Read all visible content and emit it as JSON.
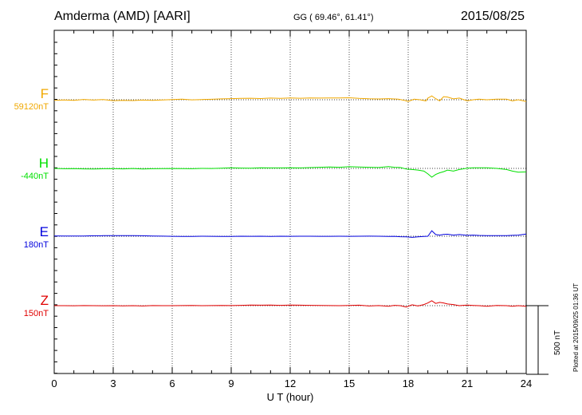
{
  "header": {
    "station": "Amderma (AMD)  [AARI]",
    "coords": "GG ( 69.46°,  61.41°)",
    "date": "2015/08/25"
  },
  "footer": {
    "plotted": "Plotted at 2015/09/25 01:36 UT",
    "scale_label": "500 nT"
  },
  "chart_data": {
    "type": "line",
    "title": "",
    "xlabel": "U T (hour)",
    "ylabel": "",
    "xlim": [
      0,
      24
    ],
    "xticks": [
      0,
      3,
      6,
      9,
      12,
      15,
      18,
      21,
      24
    ],
    "xtick_labels": [
      "0",
      "3",
      "6",
      "9",
      "12",
      "15",
      "18",
      "21",
      "24"
    ],
    "grid": "dotted",
    "scale_bar_nT": 500,
    "series": [
      {
        "name": "F",
        "baseline": "59120nT",
        "color": "#f0a800",
        "x": [
          0,
          0.5,
          1,
          1.5,
          2,
          2.5,
          3,
          3.5,
          4,
          4.5,
          5,
          5.5,
          6,
          6.5,
          7,
          7.5,
          8,
          8.5,
          9,
          9.5,
          10,
          10.5,
          11,
          11.5,
          12,
          12.5,
          13,
          13.5,
          14,
          14.5,
          15,
          15.5,
          16,
          16.5,
          17,
          17.5,
          17.8,
          18,
          18.3,
          18.6,
          18.9,
          19,
          19.2,
          19.4,
          19.6,
          19.8,
          20,
          20.3,
          20.6,
          21,
          21.3,
          21.6,
          22,
          22.5,
          23,
          23.3,
          23.6,
          24
        ],
        "y": [
          -5,
          -2,
          -6,
          3,
          -3,
          2,
          -8,
          -5,
          -7,
          -3,
          -5,
          -2,
          2,
          5,
          -1,
          2,
          4,
          8,
          10,
          12,
          14,
          11,
          15,
          13,
          17,
          14,
          16,
          15,
          17,
          16,
          18,
          12,
          9,
          7,
          10,
          5,
          -5,
          -15,
          5,
          0,
          -10,
          15,
          35,
          10,
          -10,
          28,
          25,
          8,
          15,
          -10,
          0,
          5,
          0,
          5,
          5,
          -10,
          0,
          -15
        ]
      },
      {
        "name": "H",
        "baseline": "-440nT",
        "color": "#00e000",
        "x": [
          0,
          0.5,
          1,
          1.5,
          2,
          2.5,
          3,
          3.5,
          4,
          4.5,
          5,
          5.5,
          6,
          6.5,
          7,
          7.5,
          8,
          8.5,
          9,
          9.5,
          10,
          10.5,
          11,
          11.5,
          12,
          12.5,
          13,
          13.5,
          14,
          14.5,
          15,
          15.5,
          16,
          16.5,
          17,
          17.3,
          17.6,
          17.9,
          18.2,
          18.5,
          18.8,
          19,
          19.2,
          19.4,
          19.6,
          19.8,
          20,
          20.3,
          20.6,
          21,
          21.3,
          21.6,
          22,
          22.5,
          23,
          23.3,
          23.6,
          24
        ],
        "y": [
          0,
          -3,
          -2,
          -4,
          -5,
          -3,
          -2,
          -4,
          -1,
          -6,
          -3,
          -2,
          -1,
          -2,
          -3,
          0,
          -1,
          2,
          5,
          3,
          2,
          5,
          4,
          4,
          6,
          4,
          7,
          10,
          12,
          10,
          15,
          12,
          10,
          8,
          16,
          10,
          8,
          -5,
          -10,
          -15,
          -25,
          -50,
          -80,
          -55,
          -40,
          -30,
          -15,
          -25,
          -10,
          2,
          5,
          6,
          5,
          0,
          -10,
          -25,
          -35,
          -32
        ]
      },
      {
        "name": "E",
        "baseline": "180nT",
        "color": "#0000dd",
        "x": [
          0,
          0.5,
          1,
          1.5,
          2,
          2.5,
          3,
          3.5,
          4,
          4.5,
          5,
          5.5,
          6,
          6.5,
          7,
          7.5,
          8,
          8.5,
          9,
          9.5,
          10,
          10.5,
          11,
          11.5,
          12,
          12.5,
          13,
          13.5,
          14,
          14.5,
          15,
          15.5,
          16,
          16.5,
          17,
          17.3,
          17.6,
          17.9,
          18.2,
          18.5,
          18.8,
          19,
          19.2,
          19.4,
          19.6,
          19.8,
          20,
          20.3,
          20.6,
          21,
          21.3,
          21.6,
          22,
          22.5,
          23,
          23.3,
          23.6,
          24
        ],
        "y": [
          3,
          2,
          2,
          2,
          4,
          5,
          6,
          5,
          5,
          4,
          2,
          1,
          -1,
          -2,
          -2,
          0,
          -1,
          -2,
          -2,
          0,
          -1,
          0,
          -2,
          0,
          -1,
          0,
          0,
          -1,
          -1,
          0,
          -1,
          0,
          1,
          0,
          -2,
          -1,
          -4,
          -5,
          -10,
          -6,
          -2,
          0,
          50,
          15,
          10,
          16,
          18,
          10,
          15,
          8,
          10,
          7,
          5,
          5,
          5,
          8,
          10,
          20
        ]
      },
      {
        "name": "Z",
        "baseline": "150nT",
        "color": "#e00000",
        "x": [
          0,
          0.5,
          1,
          1.5,
          2,
          2.5,
          3,
          3.5,
          4,
          4.5,
          5,
          5.5,
          6,
          6.5,
          7,
          7.5,
          8,
          8.5,
          9,
          9.5,
          10,
          10.5,
          11,
          11.5,
          12,
          12.5,
          13,
          13.5,
          14,
          14.5,
          15,
          15.5,
          16,
          16.5,
          17,
          17.3,
          17.6,
          17.9,
          18.2,
          18.5,
          18.8,
          19,
          19.2,
          19.4,
          19.6,
          19.8,
          20,
          20.3,
          20.6,
          21,
          21.3,
          21.6,
          22,
          22.5,
          23,
          23.3,
          23.6,
          24
        ],
        "y": [
          0,
          0,
          -1,
          1,
          0,
          -1,
          0,
          -2,
          0,
          -3,
          1,
          0,
          0,
          1,
          2,
          0,
          1,
          2,
          1,
          3,
          5,
          4,
          6,
          3,
          5,
          4,
          3,
          2,
          1,
          0,
          2,
          4,
          -3,
          1,
          -5,
          3,
          0,
          -12,
          8,
          -3,
          10,
          25,
          45,
          20,
          30,
          25,
          15,
          10,
          0,
          5,
          2,
          0,
          -5,
          2,
          0,
          -5,
          0,
          -5
        ]
      }
    ]
  }
}
